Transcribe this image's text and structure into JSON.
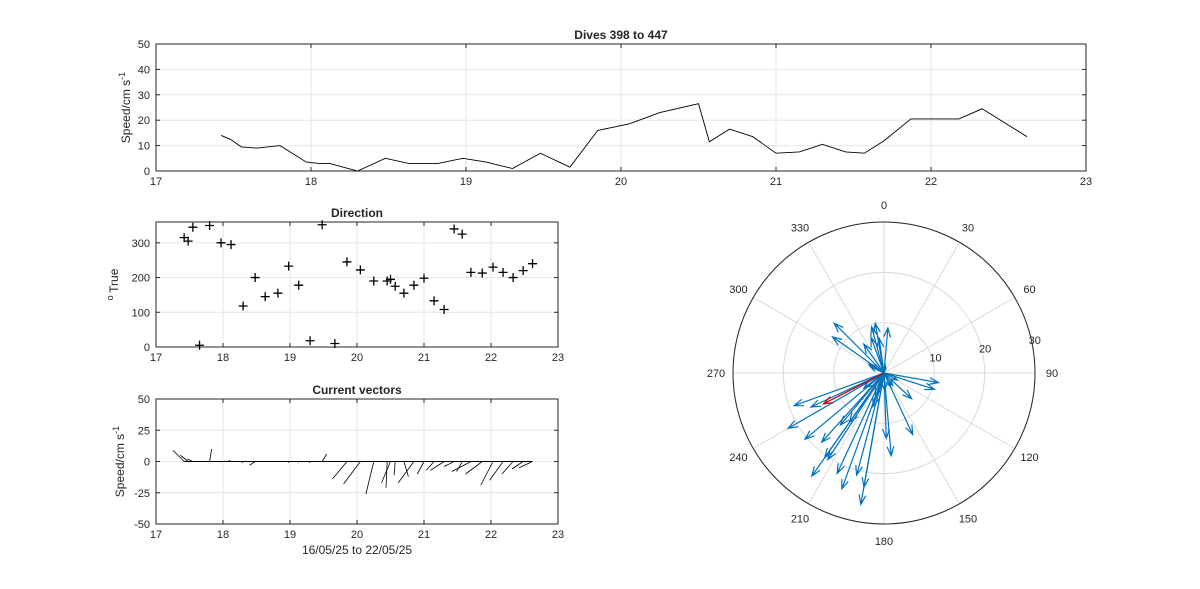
{
  "chart_data": [
    {
      "type": "line",
      "title": "Dives 398 to 447",
      "ylabel": "Speed/cm s",
      "ylabel_sup": "-1",
      "xlim": [
        17,
        23
      ],
      "ylim": [
        0,
        50
      ],
      "xticks": [
        17,
        18,
        19,
        20,
        21,
        22,
        23
      ],
      "yticks": [
        0,
        10,
        20,
        30,
        40,
        50
      ],
      "grid": true,
      "x": [
        17.42,
        17.48,
        17.55,
        17.65,
        17.72,
        17.8,
        17.97,
        18.05,
        18.12,
        18.3,
        18.48,
        18.63,
        18.72,
        18.82,
        18.98,
        19.13,
        19.3,
        19.48,
        19.67,
        19.85,
        20.05,
        20.25,
        20.5,
        20.57,
        20.7,
        20.85,
        21.0,
        21.15,
        21.3,
        21.45,
        21.57,
        21.7,
        21.87,
        22.03,
        22.18,
        22.33,
        22.62
      ],
      "y": [
        14,
        12.5,
        9.5,
        9,
        9.5,
        10,
        3.5,
        3,
        3,
        0,
        5,
        3,
        3,
        3,
        5,
        3.5,
        1,
        7,
        1.5,
        16,
        18.5,
        23,
        26.5,
        11.5,
        16.5,
        13.5,
        7,
        7.5,
        10.5,
        7.5,
        7,
        12,
        20.5,
        20.5,
        20.5,
        24.5,
        13.5
      ],
      "color": "#000000"
    },
    {
      "type": "scatter",
      "title": "Direction",
      "ylabel": "True",
      "ylabel_prefix_sup": "o",
      "xlim": [
        17,
        23
      ],
      "ylim": [
        0,
        360
      ],
      "xticks": [
        17,
        18,
        19,
        20,
        21,
        22,
        23
      ],
      "yticks": [
        0,
        100,
        200,
        300
      ],
      "grid": true,
      "marker": "+",
      "x": [
        17.42,
        17.48,
        17.55,
        17.65,
        17.8,
        17.97,
        18.12,
        18.3,
        18.48,
        18.63,
        18.82,
        18.98,
        19.13,
        19.3,
        19.48,
        19.67,
        19.85,
        20.05,
        20.25,
        20.45,
        20.5,
        20.57,
        20.7,
        20.85,
        21.0,
        21.15,
        21.3,
        21.45,
        21.57,
        21.7,
        21.87,
        22.03,
        22.18,
        22.33,
        22.48,
        22.62
      ],
      "y": [
        315,
        305,
        345,
        5,
        350,
        300,
        295,
        118,
        200,
        145,
        155,
        233,
        178,
        18,
        352,
        10,
        245,
        222,
        190,
        190,
        195,
        175,
        155,
        178,
        198,
        133,
        108,
        340,
        325,
        215,
        213,
        230,
        215,
        200,
        220,
        240
      ]
    },
    {
      "type": "vector",
      "title": "Current vectors",
      "ylabel": "Speed/cm s",
      "ylabel_sup": "-1",
      "xlabel": "16/05/25 to 22/05/25",
      "xlim": [
        17,
        23
      ],
      "ylim": [
        -50,
        50
      ],
      "xticks": [
        17,
        18,
        19,
        20,
        21,
        22,
        23
      ],
      "yticks": [
        -50,
        -25,
        0,
        25,
        50
      ],
      "grid": true,
      "origins": [
        17.42,
        17.48,
        17.55,
        17.65,
        17.8,
        17.97,
        18.12,
        18.3,
        18.48,
        18.63,
        18.82,
        18.98,
        19.13,
        19.3,
        19.48,
        19.67,
        19.85,
        20.05,
        20.25,
        20.45,
        20.5,
        20.57,
        20.7,
        20.85,
        21.0,
        21.15,
        21.3,
        21.45,
        21.57,
        21.7,
        21.87,
        22.03,
        22.18,
        22.33,
        22.48,
        22.62
      ],
      "u": [
        -10,
        -7,
        -5,
        -1,
        1.8,
        -0.8,
        -2,
        -1,
        -5,
        0,
        -1,
        0,
        0,
        -0.8,
        4,
        -1,
        -13,
        -15,
        -7,
        -1,
        -8,
        -1,
        4,
        -14,
        -6,
        -7,
        -12,
        -9,
        -5,
        -17,
        -15,
        -11,
        -12,
        -10,
        -10,
        -12
      ],
      "v": [
        9,
        5,
        2,
        0,
        10,
        -0.5,
        1,
        -1,
        -3,
        0,
        0,
        -1,
        -1,
        -1,
        6,
        0,
        -14,
        -18,
        -26,
        -21,
        -17,
        -11,
        -12,
        -17,
        -10,
        -7,
        -7,
        -4,
        -8,
        -8,
        -10,
        -19,
        -15,
        -10,
        -6,
        -5
      ],
      "scale_x_units_per_speed": 0.0167,
      "color": "#000000"
    },
    {
      "type": "compass",
      "theta_labels": [
        "0",
        "30",
        "60",
        "90",
        "120",
        "150",
        "180",
        "210",
        "240",
        "270",
        "300",
        "330"
      ],
      "r_labels": [
        "10",
        "20",
        "30"
      ],
      "rmax": 30,
      "rings": [
        10,
        20,
        30
      ],
      "vectors_color": "#0072BD",
      "mean_color": "#D00000",
      "vectors": [
        {
          "dir": 315,
          "speed": 14
        },
        {
          "dir": 305,
          "speed": 12.5
        },
        {
          "dir": 345,
          "speed": 9.5
        },
        {
          "dir": 5,
          "speed": 9
        },
        {
          "dir": 350,
          "speed": 10
        },
        {
          "dir": 300,
          "speed": 3.5
        },
        {
          "dir": 295,
          "speed": 3
        },
        {
          "dir": 118,
          "speed": 3
        },
        {
          "dir": 200,
          "speed": 5
        },
        {
          "dir": 145,
          "speed": 3
        },
        {
          "dir": 155,
          "speed": 3
        },
        {
          "dir": 233,
          "speed": 5
        },
        {
          "dir": 178,
          "speed": 3.5
        },
        {
          "dir": 18,
          "speed": 1
        },
        {
          "dir": 352,
          "speed": 7
        },
        {
          "dir": 10,
          "speed": 1.5
        },
        {
          "dir": 245,
          "speed": 16
        },
        {
          "dir": 222,
          "speed": 18.5
        },
        {
          "dir": 190,
          "speed": 23
        },
        {
          "dir": 190,
          "speed": 26.5
        },
        {
          "dir": 195,
          "speed": 21
        },
        {
          "dir": 175,
          "speed": 16.5
        },
        {
          "dir": 155,
          "speed": 13.5
        },
        {
          "dir": 178,
          "speed": 13
        },
        {
          "dir": 198,
          "speed": 7
        },
        {
          "dir": 133,
          "speed": 7.5
        },
        {
          "dir": 108,
          "speed": 10.5
        },
        {
          "dir": 340,
          "speed": 7.5
        },
        {
          "dir": 325,
          "speed": 7
        },
        {
          "dir": 215,
          "speed": 12
        },
        {
          "dir": 213,
          "speed": 20.5
        },
        {
          "dir": 230,
          "speed": 20.5
        },
        {
          "dir": 215,
          "speed": 20.5
        },
        {
          "dir": 200,
          "speed": 24.5
        },
        {
          "dir": 220,
          "speed": 13.5
        },
        {
          "dir": 240,
          "speed": 22
        },
        {
          "dir": 100,
          "speed": 11
        },
        {
          "dir": 250,
          "speed": 19
        },
        {
          "dir": 205,
          "speed": 22
        },
        {
          "dir": 215,
          "speed": 25
        }
      ],
      "mean_vector": {
        "dir": 243,
        "speed": 13.5
      }
    }
  ]
}
